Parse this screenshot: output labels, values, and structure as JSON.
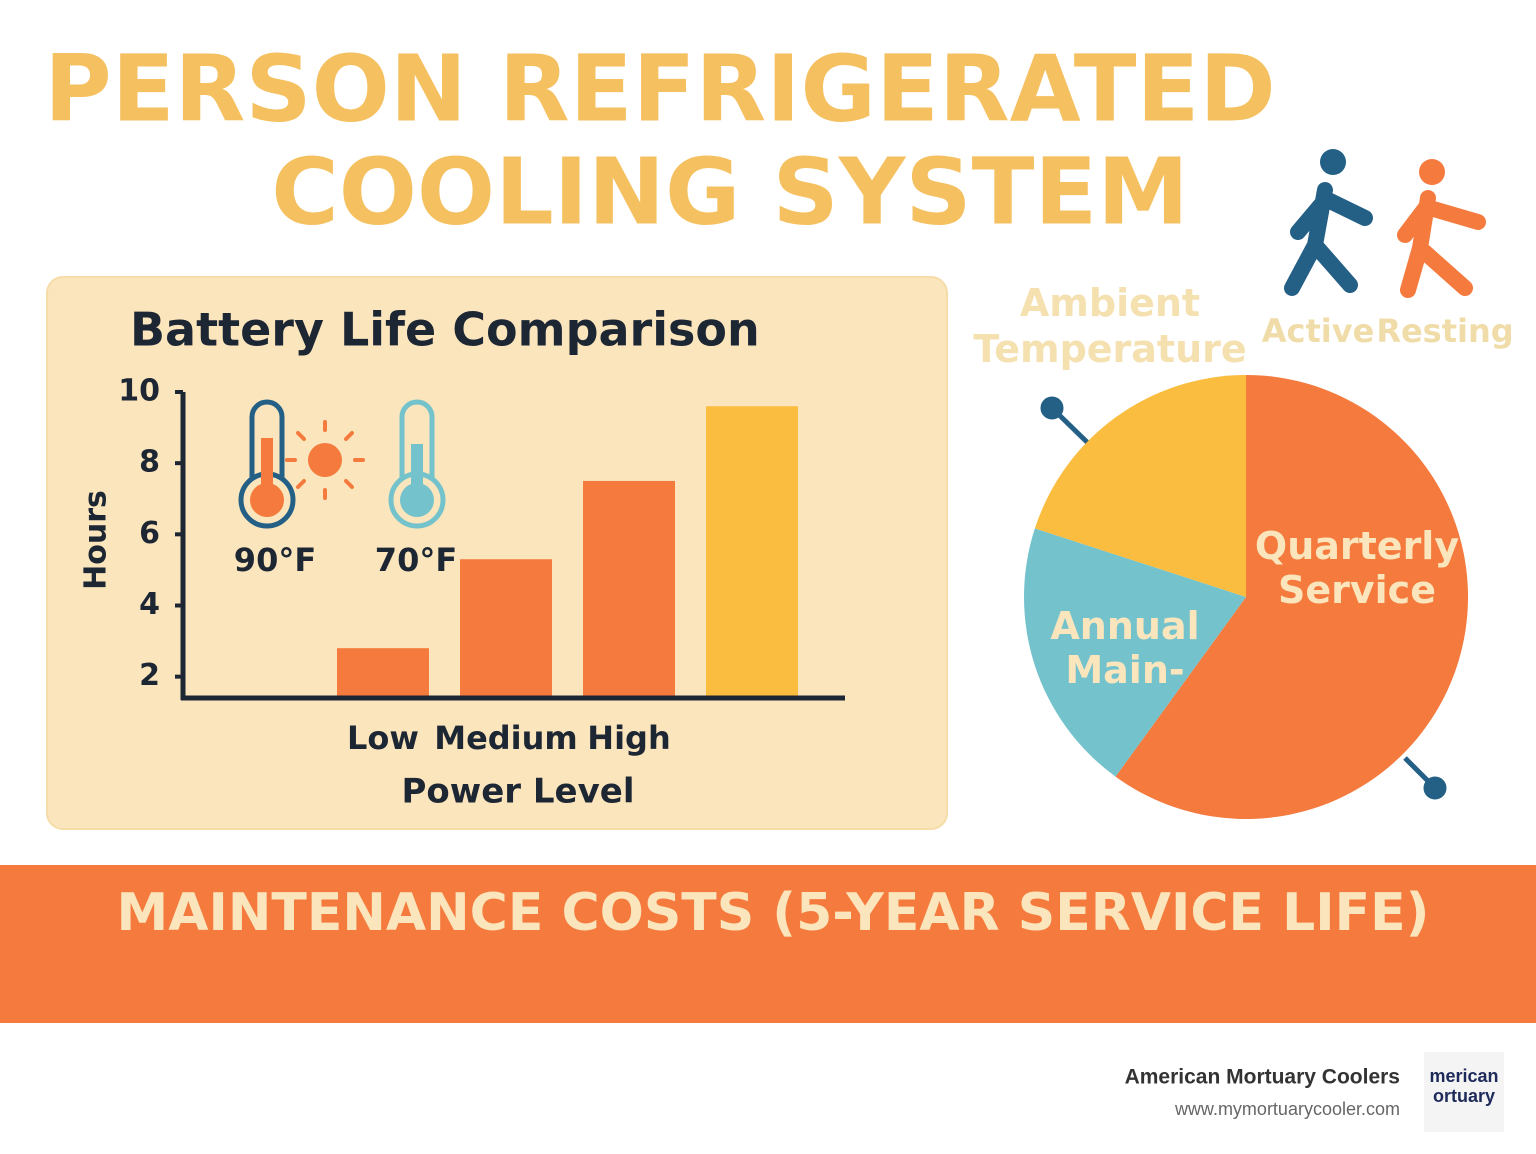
{
  "header": {
    "title_lines": [
      "PERSON REFRIGERATED",
      "COOLING SYSTEM"
    ]
  },
  "chart_data": [
    {
      "type": "bar",
      "title": "Battery Life Comparison",
      "y_label": "Hours",
      "x_label": "Power Level",
      "categories": [
        "Low",
        "Medium",
        "High",
        null
      ],
      "values": [
        2.8,
        5.3,
        7.5,
        9.6
      ],
      "colors": [
        "#f47a3d",
        "#f47a3d",
        "#f47a3d",
        "#fbbd3f"
      ],
      "ylim": [
        1.4,
        10
      ],
      "yticks": [
        2,
        4,
        6,
        8,
        10
      ],
      "annotations": [
        "90°F",
        "70°F"
      ]
    },
    {
      "type": "pie",
      "categories": [
        "Quarterly Service",
        "Annual Main-",
        null
      ],
      "values": [
        60,
        20,
        20
      ],
      "colors": [
        "#f47a3d",
        "#74c2cc",
        "#fbbd3f"
      ],
      "annotations": [
        "Ambient Temperature",
        "Active",
        "Resting"
      ]
    }
  ],
  "banner": {
    "text": "MAINTENANCE COSTS (5-YEAR SERVICE LIFE)"
  },
  "footer": {
    "company": "American Mortuary Coolers",
    "url": "www.mymortuarycooler.com",
    "logo_lines": [
      "merican",
      "ortuary"
    ]
  }
}
